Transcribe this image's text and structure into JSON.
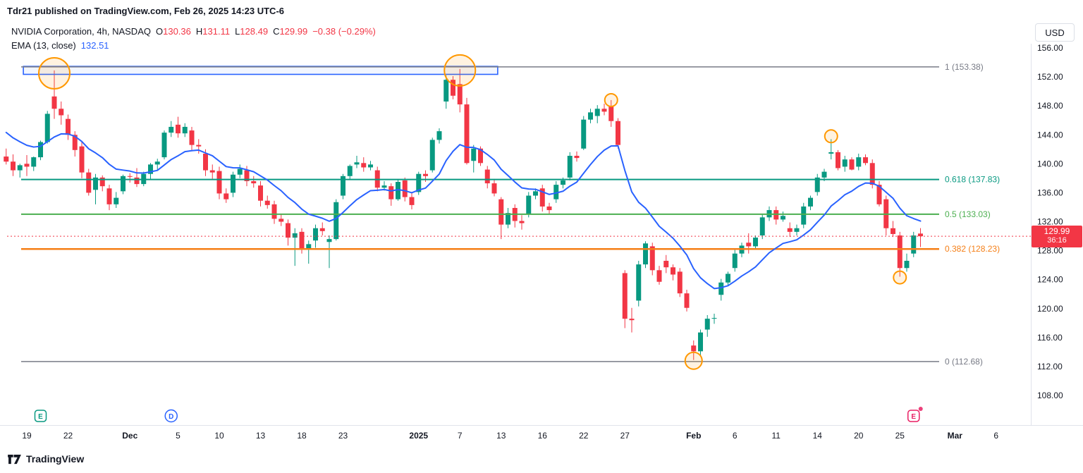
{
  "attribution": "Tdr21 published on TradingView.com, Feb 26, 2025 14:23 UTC-6",
  "header": {
    "symbol_title": "NVIDIA Corporation, 4h, NASDAQ",
    "ohlc": {
      "o_label": "O",
      "o_value": "130.36",
      "h_label": "H",
      "h_value": "131.11",
      "l_label": "L",
      "l_value": "128.49",
      "c_label": "C",
      "c_value": "129.99",
      "change": "−0.38 (−0.29%)"
    },
    "indicator": {
      "name": "EMA (13, close)",
      "value": "132.51"
    }
  },
  "axis": {
    "currency_button": "USD",
    "price_labels": [
      "156.00",
      "152.00",
      "148.00",
      "144.00",
      "140.00",
      "136.00",
      "132.00",
      "128.00",
      "124.00",
      "120.00",
      "116.00",
      "112.00",
      "108.00"
    ],
    "time_labels": [
      {
        "label": "19",
        "index": 3,
        "bold": false
      },
      {
        "label": "22",
        "index": 9,
        "bold": false
      },
      {
        "label": "Dec",
        "index": 18,
        "bold": true
      },
      {
        "label": "5",
        "index": 25,
        "bold": false
      },
      {
        "label": "10",
        "index": 31,
        "bold": false
      },
      {
        "label": "13",
        "index": 37,
        "bold": false
      },
      {
        "label": "18",
        "index": 43,
        "bold": false
      },
      {
        "label": "23",
        "index": 49,
        "bold": false
      },
      {
        "label": "2025",
        "index": 60,
        "bold": true
      },
      {
        "label": "7",
        "index": 66,
        "bold": false
      },
      {
        "label": "13",
        "index": 72,
        "bold": false
      },
      {
        "label": "16",
        "index": 78,
        "bold": false
      },
      {
        "label": "22",
        "index": 84,
        "bold": false
      },
      {
        "label": "27",
        "index": 90,
        "bold": false
      },
      {
        "label": "Feb",
        "index": 100,
        "bold": true
      },
      {
        "label": "6",
        "index": 106,
        "bold": false
      },
      {
        "label": "11",
        "index": 112,
        "bold": false
      },
      {
        "label": "14",
        "index": 118,
        "bold": false
      },
      {
        "label": "20",
        "index": 124,
        "bold": false
      },
      {
        "label": "25",
        "index": 130,
        "bold": false
      },
      {
        "label": "Mar",
        "index": 138,
        "bold": true
      },
      {
        "label": "6",
        "index": 144,
        "bold": false
      }
    ]
  },
  "footer": {
    "brand": "TradingView"
  },
  "chart_data": {
    "type": "candlestick",
    "title": "NVIDIA Corporation, 4h, NASDAQ",
    "timeframe": "4h",
    "up_color": "#089981",
    "down_color": "#f23645",
    "ema_color": "#2962ff",
    "ema_period": 13,
    "ema_seed": 145.0,
    "ema_value": 132.51,
    "ylim": [
      107.5,
      156.8
    ],
    "price_line": {
      "price": 129.99,
      "label": "129.99",
      "countdown": "36:16",
      "color": "#f23645"
    },
    "fib_levels": [
      {
        "label": "1 (153.38)",
        "price": 153.38,
        "color": "#787b86",
        "width": 1.5
      },
      {
        "label": "0.618 (137.83)",
        "price": 137.83,
        "color": "#089981",
        "width": 2
      },
      {
        "label": "0.5 (133.03)",
        "price": 133.03,
        "color": "#4caf50",
        "width": 2
      },
      {
        "label": "0.382 (128.23)",
        "price": 128.23,
        "color": "#f57f17",
        "width": 2.5
      },
      {
        "label": "0 (112.68)",
        "price": 112.68,
        "color": "#787b86",
        "width": 1.5
      }
    ],
    "rectangle": {
      "start_index": 2.5,
      "end_index": 71.5,
      "top": 153.45,
      "bottom": 152.35,
      "color": "#2962ff"
    },
    "markers": [
      {
        "index": 7,
        "price": 152.5,
        "r": 22
      },
      {
        "index": 66,
        "price": 152.9,
        "r": 22
      },
      {
        "index": 88,
        "price": 148.8,
        "r": 9
      },
      {
        "index": 120,
        "price": 143.8,
        "r": 9
      },
      {
        "index": 100,
        "price": 112.8,
        "r": 12
      },
      {
        "index": 130,
        "price": 124.3,
        "r": 9
      }
    ],
    "events": [
      {
        "shape": "square",
        "label": "E",
        "color": "#089981",
        "index": 5,
        "dot": false
      },
      {
        "shape": "circle",
        "label": "D",
        "color": "#2962ff",
        "index": 24,
        "dot": false
      },
      {
        "shape": "square",
        "label": "E",
        "color": "#e91e63",
        "index": 132,
        "dot": true
      }
    ],
    "candles": [
      [
        141.0,
        142.1,
        139.9,
        140.3
      ],
      [
        140.3,
        141.3,
        138.3,
        139.1
      ],
      [
        139.1,
        140.0,
        138.1,
        139.8
      ],
      [
        140.0,
        141.2,
        138.3,
        139.6
      ],
      [
        139.6,
        141.0,
        139.0,
        140.9
      ],
      [
        140.9,
        143.2,
        140.5,
        143.0
      ],
      [
        143.0,
        147.3,
        142.8,
        146.9
      ],
      [
        149.3,
        152.9,
        146.2,
        147.6
      ],
      [
        147.6,
        148.6,
        145.4,
        146.7
      ],
      [
        146.2,
        146.8,
        143.3,
        144.0
      ],
      [
        144.0,
        144.5,
        141.0,
        141.9
      ],
      [
        142.4,
        143.0,
        138.0,
        138.8
      ],
      [
        138.8,
        139.3,
        135.6,
        136.0
      ],
      [
        136.4,
        138.6,
        134.4,
        138.1
      ],
      [
        138.1,
        138.4,
        136.2,
        136.9
      ],
      [
        136.6,
        137.1,
        133.6,
        134.4
      ],
      [
        134.4,
        136.1,
        133.9,
        135.3
      ],
      [
        136.2,
        138.5,
        135.8,
        138.3
      ],
      [
        138.3,
        138.7,
        137.4,
        138.2
      ],
      [
        138.1,
        139.4,
        136.8,
        137.2
      ],
      [
        137.2,
        138.9,
        136.9,
        138.6
      ],
      [
        138.6,
        140.1,
        137.9,
        139.9
      ],
      [
        139.9,
        140.7,
        139.2,
        140.3
      ],
      [
        140.9,
        144.6,
        140.6,
        144.3
      ],
      [
        144.3,
        145.9,
        143.7,
        145.1
      ],
      [
        145.4,
        146.5,
        143.6,
        144.2
      ],
      [
        144.2,
        145.6,
        143.7,
        145.1
      ],
      [
        144.6,
        145.1,
        141.9,
        142.6
      ],
      [
        142.6,
        143.4,
        141.4,
        142.4
      ],
      [
        141.4,
        142.0,
        138.3,
        139.1
      ],
      [
        139.1,
        139.9,
        137.9,
        138.8
      ],
      [
        139.0,
        139.6,
        135.1,
        135.9
      ],
      [
        135.9,
        136.6,
        134.6,
        135.1
      ],
      [
        136.0,
        138.9,
        135.4,
        138.5
      ],
      [
        138.5,
        139.9,
        138.0,
        139.3
      ],
      [
        139.1,
        139.7,
        136.9,
        137.6
      ],
      [
        137.6,
        138.3,
        136.7,
        137.3
      ],
      [
        137.0,
        137.6,
        134.1,
        134.9
      ],
      [
        134.9,
        135.6,
        133.8,
        134.3
      ],
      [
        134.4,
        134.9,
        131.7,
        132.4
      ],
      [
        132.4,
        133.1,
        131.4,
        132.0
      ],
      [
        131.8,
        132.3,
        128.7,
        129.8
      ],
      [
        129.8,
        131.1,
        125.9,
        130.4
      ],
      [
        130.6,
        131.1,
        127.6,
        128.3
      ],
      [
        128.3,
        129.4,
        126.2,
        128.9
      ],
      [
        129.4,
        131.6,
        128.4,
        131.1
      ],
      [
        131.1,
        131.9,
        130.1,
        130.7
      ],
      [
        129.2,
        130.1,
        125.6,
        129.6
      ],
      [
        129.6,
        135.1,
        129.4,
        134.7
      ],
      [
        135.6,
        138.6,
        135.1,
        138.3
      ],
      [
        138.3,
        139.9,
        137.8,
        139.7
      ],
      [
        139.9,
        141.1,
        139.4,
        140.2
      ],
      [
        140.1,
        140.9,
        138.9,
        139.5
      ],
      [
        139.5,
        140.4,
        139.1,
        139.9
      ],
      [
        139.1,
        139.6,
        136.2,
        136.7
      ],
      [
        136.7,
        137.6,
        136.3,
        137.0
      ],
      [
        136.9,
        137.3,
        134.2,
        135.1
      ],
      [
        135.1,
        137.9,
        134.9,
        137.5
      ],
      [
        137.7,
        138.1,
        134.8,
        135.4
      ],
      [
        135.4,
        136.1,
        133.7,
        134.3
      ],
      [
        136.1,
        138.9,
        135.7,
        138.6
      ],
      [
        138.6,
        139.1,
        137.5,
        138.3
      ],
      [
        139.1,
        143.6,
        138.8,
        143.3
      ],
      [
        143.3,
        144.9,
        142.8,
        144.5
      ],
      [
        148.6,
        152.2,
        147.6,
        151.6
      ],
      [
        151.6,
        152.1,
        148.9,
        149.4
      ],
      [
        151.0,
        153.1,
        147.1,
        148.2
      ],
      [
        148.2,
        149.1,
        139.9,
        140.1
      ],
      [
        140.4,
        142.6,
        138.8,
        142.1
      ],
      [
        142.1,
        142.4,
        139.7,
        140.1
      ],
      [
        139.2,
        139.7,
        136.6,
        137.3
      ],
      [
        137.3,
        137.9,
        135.5,
        135.9
      ],
      [
        135.1,
        135.4,
        129.6,
        131.6
      ],
      [
        131.6,
        133.9,
        131.1,
        133.2
      ],
      [
        133.9,
        134.4,
        131.2,
        132.1
      ],
      [
        132.1,
        132.9,
        130.9,
        131.8
      ],
      [
        133.1,
        136.1,
        132.6,
        135.6
      ],
      [
        135.6,
        136.6,
        135.1,
        136.2
      ],
      [
        136.6,
        137.1,
        133.4,
        134.1
      ],
      [
        134.1,
        134.6,
        133.0,
        133.6
      ],
      [
        135.1,
        137.6,
        134.6,
        137.1
      ],
      [
        137.1,
        138.1,
        136.6,
        137.7
      ],
      [
        138.1,
        141.6,
        137.7,
        141.1
      ],
      [
        141.1,
        141.7,
        140.3,
        140.8
      ],
      [
        142.1,
        146.6,
        141.9,
        146.1
      ],
      [
        146.1,
        147.6,
        145.6,
        147.1
      ],
      [
        146.6,
        148.1,
        145.6,
        147.6
      ],
      [
        147.6,
        148.3,
        146.7,
        147.2
      ],
      [
        147.9,
        148.8,
        145.1,
        145.9
      ],
      [
        145.9,
        146.3,
        142.1,
        142.6
      ],
      [
        124.9,
        125.3,
        117.3,
        118.6
      ],
      [
        118.6,
        120.1,
        116.7,
        118.4
      ],
      [
        121.1,
        126.6,
        120.3,
        126.1
      ],
      [
        126.1,
        129.3,
        125.6,
        129.0
      ],
      [
        128.6,
        129.1,
        124.6,
        125.3
      ],
      [
        125.3,
        125.9,
        123.3,
        123.7
      ],
      [
        126.6,
        127.4,
        124.9,
        125.7
      ],
      [
        125.7,
        126.1,
        123.9,
        124.7
      ],
      [
        125.1,
        125.6,
        121.6,
        122.1
      ],
      [
        122.1,
        122.6,
        119.6,
        120.1
      ],
      [
        114.9,
        115.6,
        112.9,
        114.1
      ],
      [
        114.1,
        117.1,
        113.6,
        116.7
      ],
      [
        117.1,
        119.1,
        116.1,
        118.6
      ],
      [
        118.6,
        119.3,
        117.9,
        118.7
      ],
      [
        121.9,
        124.1,
        121.1,
        123.6
      ],
      [
        123.6,
        125.1,
        123.1,
        124.8
      ],
      [
        125.6,
        128.1,
        125.1,
        127.6
      ],
      [
        127.6,
        129.1,
        127.1,
        128.7
      ],
      [
        129.1,
        130.4,
        127.6,
        128.6
      ],
      [
        128.6,
        130.1,
        128.1,
        129.8
      ],
      [
        130.1,
        133.1,
        129.6,
        132.6
      ],
      [
        132.6,
        134.1,
        132.1,
        133.6
      ],
      [
        133.6,
        134.1,
        131.6,
        132.3
      ],
      [
        132.3,
        133.4,
        132.0,
        132.8
      ],
      [
        131.1,
        131.9,
        129.9,
        130.6
      ],
      [
        130.6,
        131.6,
        130.1,
        131.1
      ],
      [
        131.6,
        134.6,
        131.1,
        134.1
      ],
      [
        134.1,
        135.6,
        133.6,
        135.3
      ],
      [
        136.1,
        138.6,
        135.6,
        138.1
      ],
      [
        138.1,
        139.3,
        137.6,
        138.9
      ],
      [
        141.4,
        143.4,
        140.6,
        141.6
      ],
      [
        141.6,
        141.9,
        139.1,
        139.4
      ],
      [
        139.6,
        141.1,
        138.9,
        140.6
      ],
      [
        140.6,
        140.9,
        139.1,
        139.2
      ],
      [
        139.6,
        141.4,
        139.1,
        140.9
      ],
      [
        140.9,
        141.3,
        139.8,
        140.1
      ],
      [
        140.1,
        140.6,
        136.6,
        137.1
      ],
      [
        137.1,
        137.6,
        134.1,
        134.4
      ],
      [
        135.1,
        135.6,
        130.1,
        131.1
      ],
      [
        131.1,
        132.1,
        129.9,
        130.3
      ],
      [
        130.1,
        130.6,
        124.4,
        125.6
      ],
      [
        125.6,
        127.6,
        125.1,
        126.6
      ],
      [
        127.6,
        130.6,
        127.1,
        130.1
      ],
      [
        130.36,
        131.11,
        128.49,
        129.99
      ]
    ]
  }
}
